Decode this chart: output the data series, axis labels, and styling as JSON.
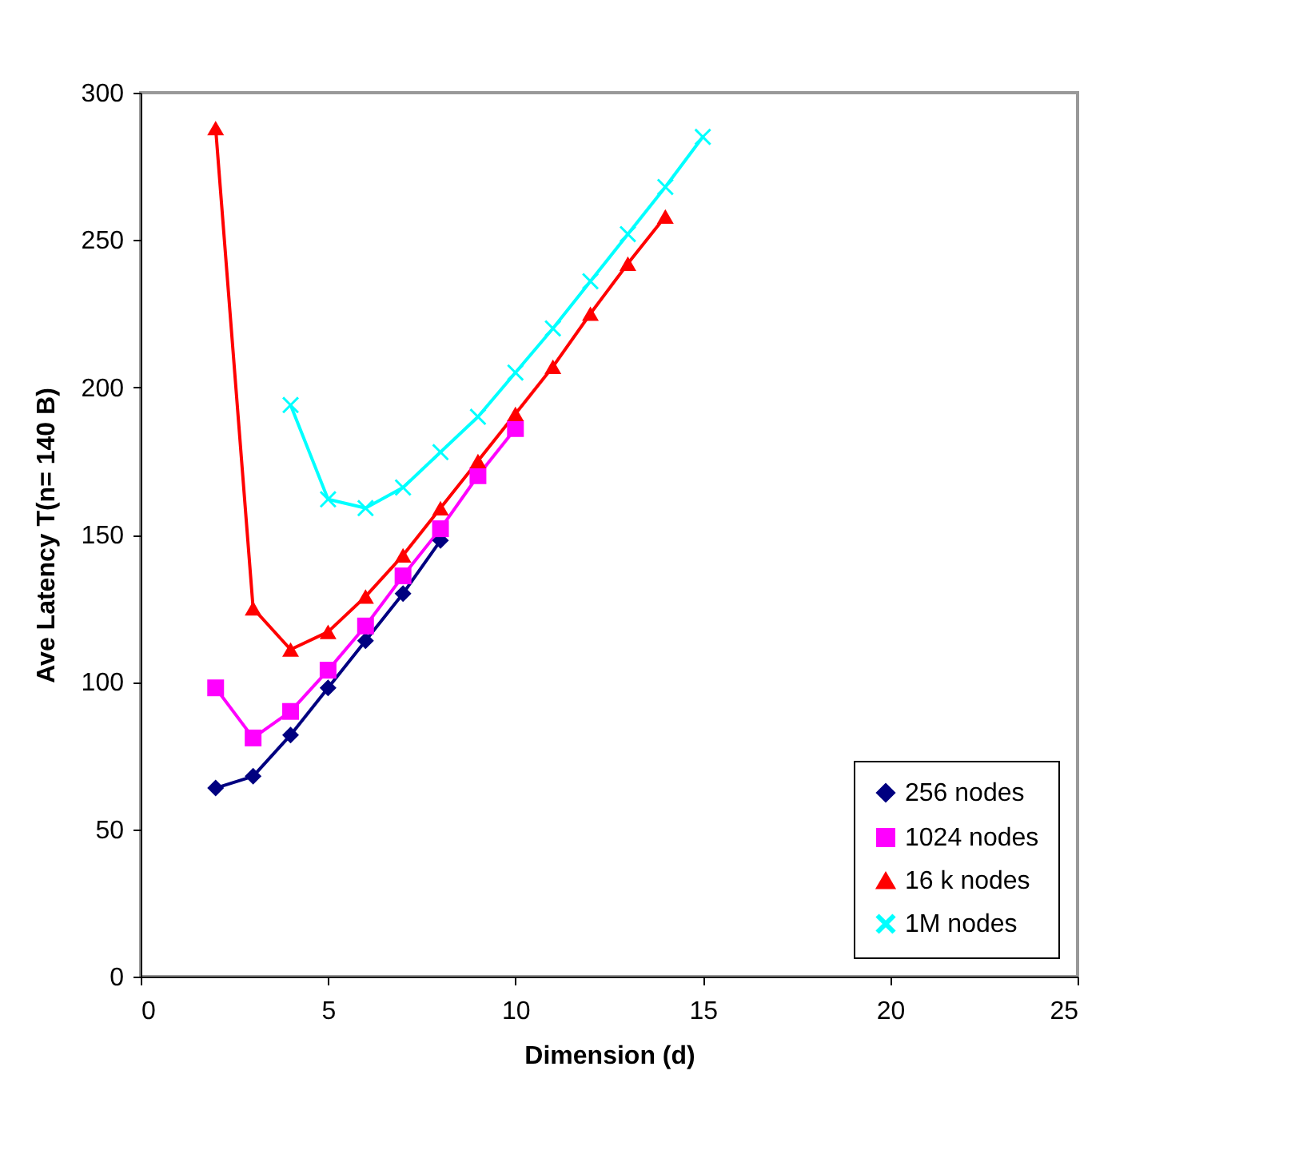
{
  "chart_data": {
    "type": "line",
    "xlabel": "Dimension (d)",
    "ylabel": "Ave Latency T(n= 140 B)",
    "xlim": [
      0,
      25
    ],
    "xticks": [
      0,
      5,
      10,
      15,
      20,
      25
    ],
    "ylim": [
      0,
      300
    ],
    "yticks": [
      0,
      50,
      100,
      150,
      200,
      250,
      300
    ],
    "grid": false,
    "legend": "bottom right",
    "series": [
      {
        "name": "256 nodes",
        "color": "#000080",
        "marker": "diamond",
        "x": [
          2,
          3,
          4,
          5,
          6,
          7,
          8
        ],
        "values": [
          64,
          68,
          82,
          98,
          114,
          130,
          148
        ]
      },
      {
        "name": "1024 nodes",
        "color": "#ff00ff",
        "marker": "square",
        "x": [
          2,
          3,
          4,
          5,
          6,
          7,
          8,
          9,
          10
        ],
        "values": [
          98,
          81,
          90,
          104,
          119,
          136,
          152,
          170,
          186
        ]
      },
      {
        "name": "16 k nodes",
        "color": "#ff0000",
        "marker": "triangle",
        "x": [
          2,
          3,
          4,
          5,
          6,
          7,
          8,
          9,
          10,
          11,
          12,
          13,
          14
        ],
        "values": [
          288,
          125,
          111,
          117,
          129,
          143,
          159,
          175,
          191,
          207,
          225,
          242,
          258
        ]
      },
      {
        "name": "1M nodes",
        "color": "#00ffff",
        "marker": "cross",
        "x": [
          4,
          5,
          6,
          7,
          8,
          9,
          10,
          11,
          12,
          13,
          14,
          15
        ],
        "values": [
          194,
          162,
          159,
          166,
          178,
          190,
          205,
          220,
          236,
          252,
          268,
          285
        ]
      }
    ]
  }
}
